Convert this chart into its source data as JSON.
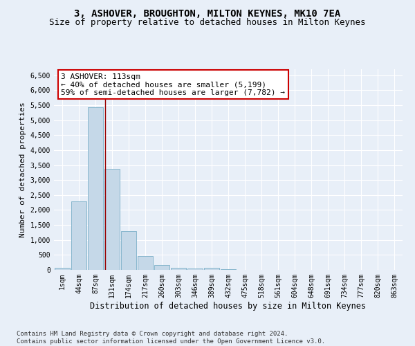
{
  "title1": "3, ASHOVER, BROUGHTON, MILTON KEYNES, MK10 7EA",
  "title2": "Size of property relative to detached houses in Milton Keynes",
  "xlabel": "Distribution of detached houses by size in Milton Keynes",
  "ylabel": "Number of detached properties",
  "bin_labels": [
    "1sqm",
    "44sqm",
    "87sqm",
    "131sqm",
    "174sqm",
    "217sqm",
    "260sqm",
    "303sqm",
    "346sqm",
    "389sqm",
    "432sqm",
    "475sqm",
    "518sqm",
    "561sqm",
    "604sqm",
    "648sqm",
    "691sqm",
    "734sqm",
    "777sqm",
    "820sqm",
    "863sqm"
  ],
  "bar_values": [
    60,
    2280,
    5440,
    3380,
    1300,
    470,
    160,
    80,
    50,
    60,
    30,
    0,
    0,
    0,
    0,
    0,
    0,
    0,
    0,
    0,
    0
  ],
  "bar_color": "#c5d8e8",
  "bar_edge_color": "#7aafc8",
  "red_line_x": 2.58,
  "annotation_line1": "3 ASHOVER: 113sqm",
  "annotation_line2": "← 40% of detached houses are smaller (5,199)",
  "annotation_line3": "59% of semi-detached houses are larger (7,782) →",
  "annotation_box_color": "white",
  "annotation_box_edge": "#cc0000",
  "ylim": [
    0,
    6700
  ],
  "yticks": [
    0,
    500,
    1000,
    1500,
    2000,
    2500,
    3000,
    3500,
    4000,
    4500,
    5000,
    5500,
    6000,
    6500
  ],
  "footnote": "Contains HM Land Registry data © Crown copyright and database right 2024.\nContains public sector information licensed under the Open Government Licence v3.0.",
  "bg_color": "#e8eff8",
  "plot_bg_color": "#e8eff8",
  "grid_color": "white",
  "title1_fontsize": 10,
  "title2_fontsize": 9,
  "xlabel_fontsize": 8.5,
  "ylabel_fontsize": 8,
  "tick_fontsize": 7,
  "annot_fontsize": 8,
  "footnote_fontsize": 6.5
}
